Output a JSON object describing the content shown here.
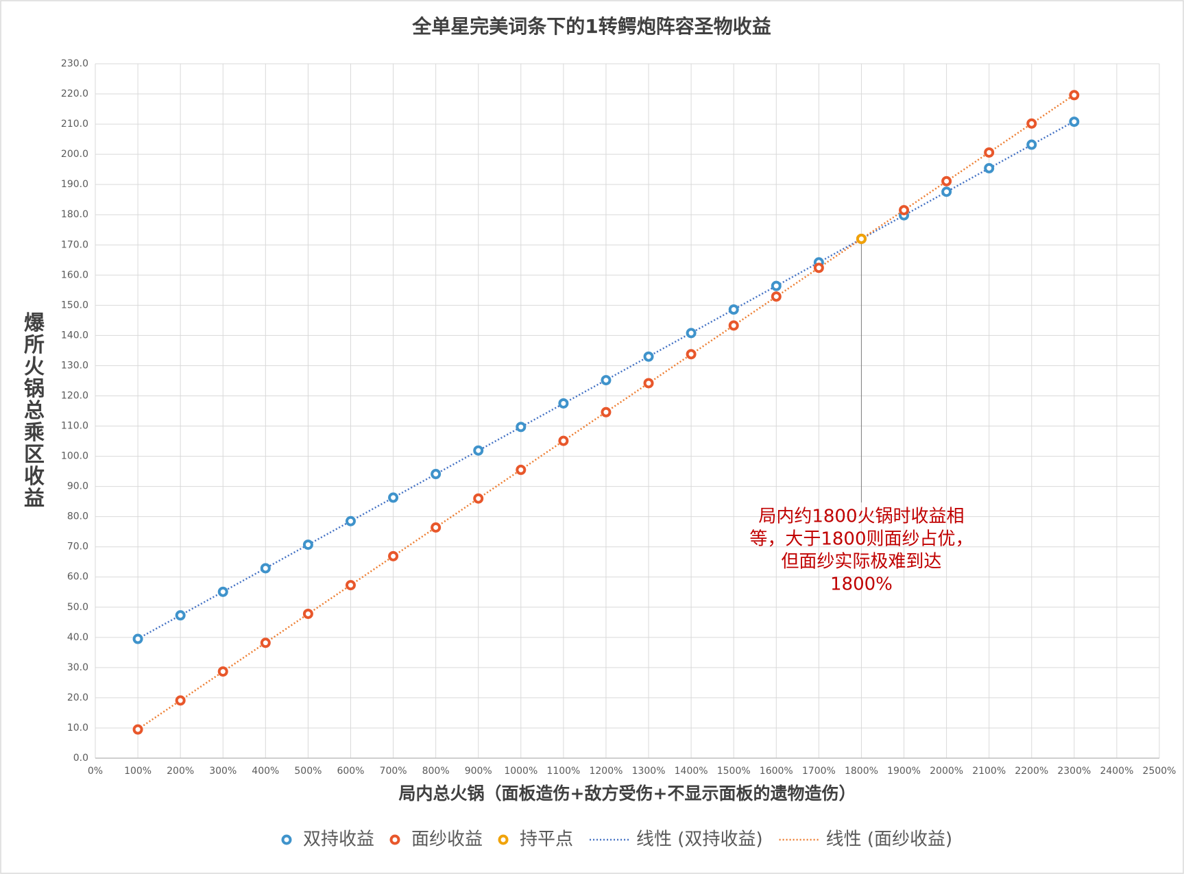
{
  "chart_data": {
    "type": "scatter",
    "title": "全单星完美词条下的1转鳄炮阵容圣物收益",
    "x_label": "局内总火锅（面板造伤+敌方受伤+不显示面板的遗物造伤）",
    "y_label": "爆所火锅总乘区收益",
    "xlim": [
      0,
      2500
    ],
    "xticks": [
      {
        "value": 0,
        "label": "0%"
      },
      {
        "value": 100,
        "label": "100%"
      },
      {
        "value": 200,
        "label": "200%"
      },
      {
        "value": 300,
        "label": "300%"
      },
      {
        "value": 400,
        "label": "400%"
      },
      {
        "value": 500,
        "label": "500%"
      },
      {
        "value": 600,
        "label": "600%"
      },
      {
        "value": 700,
        "label": "700%"
      },
      {
        "value": 800,
        "label": "800%"
      },
      {
        "value": 900,
        "label": "900%"
      },
      {
        "value": 1000,
        "label": "1000%"
      },
      {
        "value": 1100,
        "label": "1100%"
      },
      {
        "value": 1200,
        "label": "1200%"
      },
      {
        "value": 1300,
        "label": "1300%"
      },
      {
        "value": 1400,
        "label": "1400%"
      },
      {
        "value": 1500,
        "label": "1500%"
      },
      {
        "value": 1600,
        "label": "1600%"
      },
      {
        "value": 1700,
        "label": "1700%"
      },
      {
        "value": 1800,
        "label": "1800%"
      },
      {
        "value": 1900,
        "label": "1900%"
      },
      {
        "value": 2000,
        "label": "2000%"
      },
      {
        "value": 2100,
        "label": "2100%"
      },
      {
        "value": 2200,
        "label": "2200%"
      },
      {
        "value": 2300,
        "label": "2300%"
      },
      {
        "value": 2400,
        "label": "2400%"
      },
      {
        "value": 2500,
        "label": "2500%"
      }
    ],
    "ylim": [
      0,
      230
    ],
    "yticks": [
      {
        "value": 0,
        "label": "0.0"
      },
      {
        "value": 10,
        "label": "10.0"
      },
      {
        "value": 20,
        "label": "20.0"
      },
      {
        "value": 30,
        "label": "30.0"
      },
      {
        "value": 40,
        "label": "40.0"
      },
      {
        "value": 50,
        "label": "50.0"
      },
      {
        "value": 60,
        "label": "60.0"
      },
      {
        "value": 70,
        "label": "70.0"
      },
      {
        "value": 80,
        "label": "80.0"
      },
      {
        "value": 90,
        "label": "90.0"
      },
      {
        "value": 100,
        "label": "100.0"
      },
      {
        "value": 110,
        "label": "110.0"
      },
      {
        "value": 120,
        "label": "120.0"
      },
      {
        "value": 130,
        "label": "130.0"
      },
      {
        "value": 140,
        "label": "140.0"
      },
      {
        "value": 150,
        "label": "150.0"
      },
      {
        "value": 160,
        "label": "160.0"
      },
      {
        "value": 170,
        "label": "170.0"
      },
      {
        "value": 180,
        "label": "180.0"
      },
      {
        "value": 190,
        "label": "190.0"
      },
      {
        "value": 200,
        "label": "200.0"
      },
      {
        "value": 210,
        "label": "210.0"
      },
      {
        "value": 220,
        "label": "220.0"
      },
      {
        "value": 230,
        "label": "230.0"
      }
    ],
    "grid": true,
    "legend": "bottom",
    "series": [
      {
        "name": "双持收益",
        "color": "#3f93cb",
        "x": [
          100,
          200,
          300,
          400,
          500,
          600,
          700,
          800,
          900,
          1000,
          1100,
          1200,
          1300,
          1400,
          1500,
          1600,
          1700,
          1800,
          1900,
          2000,
          2100,
          2200,
          2300
        ],
        "values": [
          39.5,
          47.3,
          55.1,
          62.9,
          70.7,
          78.5,
          86.3,
          94.1,
          101.9,
          109.7,
          117.5,
          125.2,
          133.0,
          140.8,
          148.6,
          156.4,
          164.2,
          172.0,
          179.8,
          187.6,
          195.4,
          203.2,
          210.8
        ],
        "trendline": {
          "name": "线性 (双持收益)",
          "color": "#4472c4"
        }
      },
      {
        "name": "面纱收益",
        "color": "#e8572b",
        "x": [
          100,
          200,
          300,
          400,
          500,
          600,
          700,
          800,
          900,
          1000,
          1100,
          1200,
          1300,
          1400,
          1500,
          1600,
          1700,
          1800,
          1900,
          2000,
          2100,
          2200,
          2300
        ],
        "values": [
          9.5,
          19.1,
          28.7,
          38.2,
          47.8,
          57.3,
          66.9,
          76.4,
          86.0,
          95.5,
          105.1,
          114.6,
          124.2,
          133.8,
          143.3,
          152.9,
          162.4,
          172.0,
          181.5,
          191.1,
          200.6,
          210.2,
          219.6
        ],
        "trendline": {
          "name": "线性 (面纱收益)",
          "color": "#ed7d31"
        }
      },
      {
        "name": "持平点",
        "color": "#f0a30a",
        "x": [
          1800
        ],
        "values": [
          172.0
        ]
      }
    ],
    "annotation": {
      "lines": [
        "局内约1800火锅时收益相",
        "等，大于1800则面纱占优，",
        "但面纱实际极难到达",
        "1800%"
      ],
      "color": "#c00000"
    }
  }
}
